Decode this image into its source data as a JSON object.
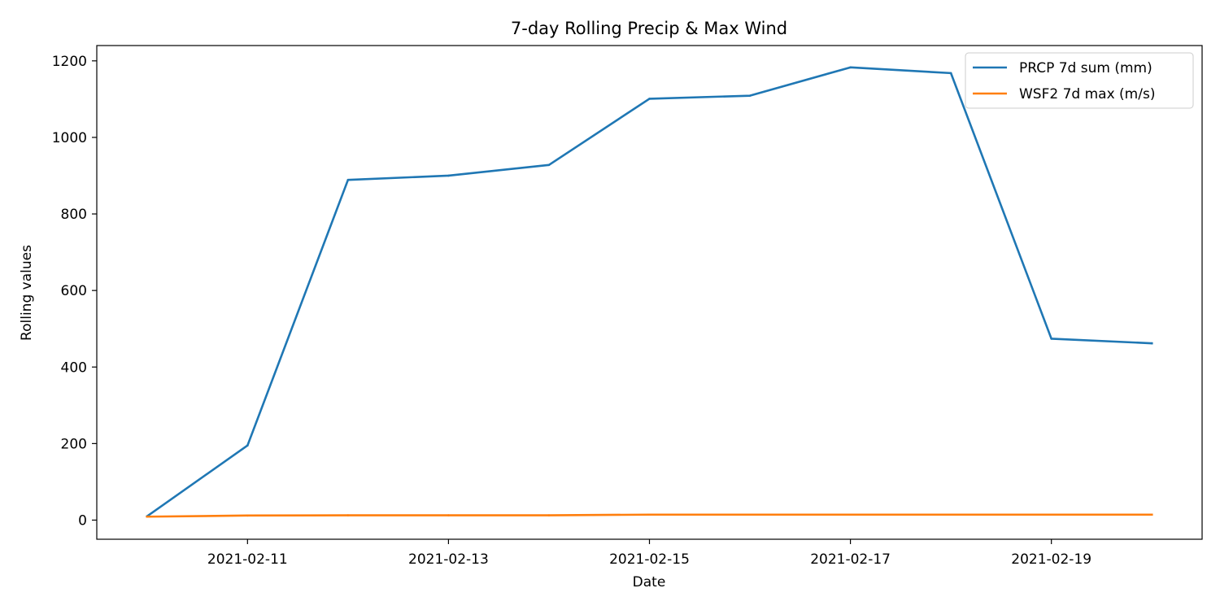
{
  "chart_data": {
    "type": "line",
    "title": "7-day Rolling Precip & Max Wind",
    "xlabel": "Date",
    "ylabel": "Rolling values",
    "x": [
      "2021-02-10",
      "2021-02-11",
      "2021-02-12",
      "2021-02-13",
      "2021-02-14",
      "2021-02-15",
      "2021-02-16",
      "2021-02-17",
      "2021-02-18",
      "2021-02-19",
      "2021-02-20"
    ],
    "x_ticks": [
      "2021-02-11",
      "2021-02-13",
      "2021-02-15",
      "2021-02-17",
      "2021-02-19"
    ],
    "xlim": [
      "2021-02-09T12:00",
      "2021-02-20T12:00"
    ],
    "y_ticks": [
      0,
      200,
      400,
      600,
      800,
      1000,
      1200
    ],
    "ylim": [
      -50,
      1240
    ],
    "grid": false,
    "legend_position": "top-right",
    "series": [
      {
        "name": "PRCP 7d sum (mm)",
        "color": "#1f77b4",
        "values": [
          10,
          195,
          889,
          900,
          928,
          1101,
          1109,
          1183,
          1168,
          474,
          462
        ]
      },
      {
        "name": "WSF2 7d max (m/s)",
        "color": "#ff7f0e",
        "values": [
          9,
          12,
          12.5,
          12.5,
          12.5,
          14.3,
          14.3,
          14.3,
          14.3,
          14.3,
          14.3
        ]
      }
    ]
  }
}
